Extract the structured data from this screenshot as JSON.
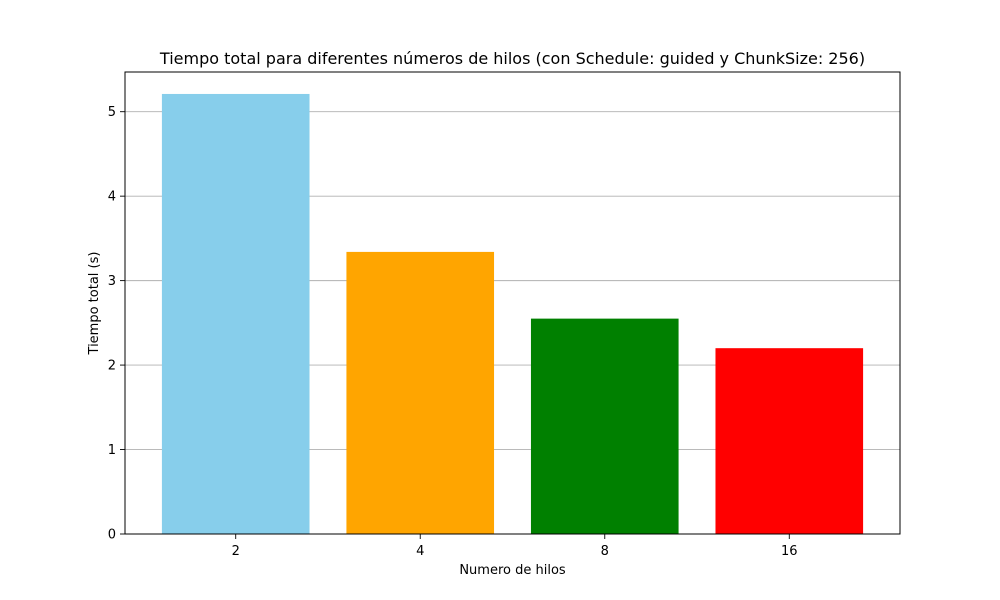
{
  "chart_data": {
    "type": "bar",
    "title": "Tiempo total para diferentes números de hilos (con Schedule: guided y ChunkSize: 256)",
    "xlabel": "Numero de hilos",
    "ylabel": "Tiempo total (s)",
    "categories": [
      "2",
      "4",
      "8",
      "16"
    ],
    "values": [
      5.21,
      3.34,
      2.55,
      2.2
    ],
    "colors": [
      "#87ceeb",
      "#ffa500",
      "#008000",
      "#ff0000"
    ],
    "ylim": [
      0,
      5.47
    ],
    "yticks": [
      0,
      1,
      2,
      3,
      4,
      5
    ],
    "grid": "y-axis",
    "legend": "none"
  }
}
